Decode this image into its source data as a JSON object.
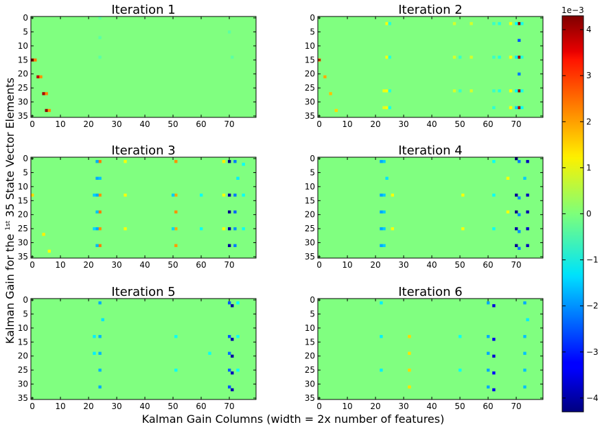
{
  "figure": {
    "xlabel": "Kalman Gain Columns (width = 2x number of features)",
    "ylabel_pre": "Kalman Gain for the ",
    "ylabel_sup": "1st",
    "ylabel_post": " 35 State Vector Elements"
  },
  "colorbar": {
    "colormap": "jet",
    "multiplier": "1e−3",
    "range": [
      -4.3,
      4.3
    ],
    "ticks": [
      4,
      3,
      2,
      1,
      0,
      -1,
      -2,
      -3,
      -4
    ],
    "tick_labels": [
      "4",
      "3",
      "2",
      "1",
      "0",
      "−1",
      "−2",
      "−3",
      "−4"
    ]
  },
  "chart_data": [
    {
      "type": "heatmap",
      "title": "Iteration 1",
      "xlim": [
        0,
        80
      ],
      "ylim": [
        36,
        0
      ],
      "xticks": [
        0,
        10,
        20,
        30,
        40,
        50,
        60,
        70
      ],
      "yticks": [
        0,
        5,
        10,
        15,
        20,
        25,
        30,
        35
      ],
      "baseline": 0,
      "cells": [
        [
          0,
          15,
          4.2
        ],
        [
          1,
          15,
          2.2
        ],
        [
          2,
          21,
          3.8
        ],
        [
          3,
          21,
          2.0
        ],
        [
          4,
          27,
          4.0
        ],
        [
          5,
          27,
          2.1
        ],
        [
          5,
          33,
          4.2
        ],
        [
          6,
          33,
          2.0
        ],
        [
          24,
          0,
          -0.25
        ],
        [
          24,
          7,
          -0.3
        ],
        [
          24,
          14,
          -0.3
        ],
        [
          70,
          5,
          -0.3
        ],
        [
          71,
          14,
          -0.3
        ]
      ]
    },
    {
      "type": "heatmap",
      "title": "Iteration 2",
      "xlim": [
        0,
        80
      ],
      "ylim": [
        36,
        0
      ],
      "xticks": [
        0,
        10,
        20,
        30,
        40,
        50,
        60,
        70
      ],
      "yticks": [
        0,
        5,
        10,
        15,
        20,
        25,
        30,
        35
      ],
      "baseline": 0,
      "cells": [
        [
          0,
          15,
          2.5
        ],
        [
          2,
          21,
          1.8
        ],
        [
          4,
          27,
          1.6
        ],
        [
          6,
          33,
          1.4
        ],
        [
          71,
          2,
          4.2
        ],
        [
          71,
          8,
          -2.5
        ],
        [
          71,
          14,
          4.0
        ],
        [
          71,
          20,
          -2.2
        ],
        [
          71,
          26,
          4.1
        ],
        [
          71,
          32,
          3.9
        ],
        [
          70,
          2,
          -1.0
        ],
        [
          70,
          14,
          -1.2
        ],
        [
          70,
          26,
          -1.1
        ],
        [
          70,
          32,
          -1.4
        ],
        [
          72,
          2,
          -0.9
        ],
        [
          72,
          14,
          -0.8
        ],
        [
          72,
          26,
          -0.9
        ],
        [
          72,
          32,
          -1.0
        ],
        [
          68,
          2,
          1.0
        ],
        [
          68,
          14,
          1.0
        ],
        [
          68,
          26,
          1.0
        ],
        [
          68,
          32,
          1.1
        ],
        [
          64,
          2,
          -0.8
        ],
        [
          64,
          14,
          -0.8
        ],
        [
          64,
          26,
          -0.8
        ],
        [
          62,
          2,
          -0.6
        ],
        [
          62,
          14,
          -0.6
        ],
        [
          62,
          26,
          -0.6
        ],
        [
          62,
          32,
          -0.7
        ],
        [
          24,
          2,
          1.0
        ],
        [
          24,
          14,
          1.0
        ],
        [
          24,
          26,
          1.0
        ],
        [
          24,
          32,
          1.0
        ],
        [
          25,
          2,
          -0.8
        ],
        [
          25,
          14,
          -0.8
        ],
        [
          25,
          26,
          -0.8
        ],
        [
          25,
          32,
          -0.9
        ],
        [
          23,
          26,
          0.9
        ],
        [
          23,
          32,
          0.8
        ],
        [
          48,
          2,
          0.7
        ],
        [
          48,
          14,
          0.7
        ],
        [
          48,
          26,
          0.7
        ],
        [
          50,
          14,
          -0.6
        ],
        [
          50,
          26,
          -0.6
        ],
        [
          54,
          2,
          0.7
        ],
        [
          54,
          14,
          0.7
        ],
        [
          54,
          26,
          0.7
        ]
      ]
    },
    {
      "type": "heatmap",
      "title": "Iteration 3",
      "xlim": [
        0,
        80
      ],
      "ylim": [
        36,
        0
      ],
      "xticks": [
        0,
        10,
        20,
        30,
        40,
        50,
        60,
        70
      ],
      "yticks": [
        0,
        5,
        10,
        15,
        20,
        25,
        30,
        35
      ],
      "baseline": 0,
      "cells": [
        [
          70,
          1,
          -4.2
        ],
        [
          70,
          13,
          -4.0
        ],
        [
          70,
          19,
          -4.2
        ],
        [
          70,
          25,
          -4.0
        ],
        [
          70,
          31,
          -4.1
        ],
        [
          72,
          1,
          -2.2
        ],
        [
          72,
          13,
          -2.2
        ],
        [
          72,
          19,
          -2.4
        ],
        [
          72,
          25,
          -2.0
        ],
        [
          72,
          31,
          -2.2
        ],
        [
          24,
          1,
          2.2
        ],
        [
          24,
          13,
          2.0
        ],
        [
          24,
          19,
          2.2
        ],
        [
          24,
          25,
          2.0
        ],
        [
          24,
          31,
          2.2
        ],
        [
          23,
          1,
          -1.8
        ],
        [
          23,
          13,
          -1.8
        ],
        [
          23,
          19,
          -1.6
        ],
        [
          23,
          25,
          -1.8
        ],
        [
          23,
          31,
          -1.7
        ],
        [
          23,
          7,
          -1.8
        ],
        [
          24,
          7,
          -1.6
        ],
        [
          22,
          13,
          -1.5
        ],
        [
          22,
          25,
          -1.4
        ],
        [
          51,
          1,
          2.0
        ],
        [
          51,
          13,
          1.8
        ],
        [
          51,
          19,
          2.0
        ],
        [
          51,
          25,
          1.8
        ],
        [
          51,
          31,
          1.9
        ],
        [
          50,
          13,
          -1.5
        ],
        [
          50,
          25,
          -1.4
        ],
        [
          68,
          1,
          1.2
        ],
        [
          68,
          13,
          1.0
        ],
        [
          68,
          25,
          1.0
        ],
        [
          73,
          7,
          -1.2
        ],
        [
          75,
          2,
          -1.0
        ],
        [
          75,
          13,
          -1.0
        ],
        [
          75,
          25,
          -1.0
        ],
        [
          33,
          1,
          1.0
        ],
        [
          33,
          13,
          1.0
        ],
        [
          33,
          25,
          1.0
        ],
        [
          60,
          13,
          -1.0
        ],
        [
          60,
          25,
          -1.0
        ],
        [
          0,
          13,
          1.4
        ],
        [
          4,
          27,
          1.2
        ],
        [
          6,
          33,
          1.0
        ]
      ]
    },
    {
      "type": "heatmap",
      "title": "Iteration 4",
      "xlim": [
        0,
        80
      ],
      "ylim": [
        36,
        0
      ],
      "xticks": [
        0,
        10,
        20,
        30,
        40,
        50,
        60,
        70
      ],
      "yticks": [
        0,
        5,
        10,
        15,
        20,
        25,
        30,
        35
      ],
      "baseline": 0,
      "cells": [
        [
          70,
          0,
          -4.1
        ],
        [
          70,
          13,
          -4.1
        ],
        [
          70,
          19,
          -4.2
        ],
        [
          70,
          25,
          -4.0
        ],
        [
          70,
          31,
          -4.1
        ],
        [
          71,
          1,
          -2.2
        ],
        [
          71,
          14,
          -2.0
        ],
        [
          71,
          20,
          -2.0
        ],
        [
          71,
          26,
          -2.0
        ],
        [
          71,
          32,
          -2.2
        ],
        [
          74,
          1,
          -3.8
        ],
        [
          74,
          13,
          -3.8
        ],
        [
          74,
          19,
          -3.9
        ],
        [
          74,
          25,
          -3.7
        ],
        [
          74,
          31,
          -3.8
        ],
        [
          73,
          7,
          -1.5
        ],
        [
          23,
          1,
          -1.5
        ],
        [
          23,
          13,
          -1.5
        ],
        [
          23,
          19,
          -1.5
        ],
        [
          23,
          25,
          -1.5
        ],
        [
          23,
          31,
          -1.5
        ],
        [
          22,
          1,
          -1.8
        ],
        [
          22,
          13,
          -1.8
        ],
        [
          22,
          19,
          -1.8
        ],
        [
          22,
          25,
          -1.8
        ],
        [
          22,
          31,
          -1.8
        ],
        [
          24,
          7,
          -1.3
        ],
        [
          26,
          13,
          1.0
        ],
        [
          26,
          25,
          1.0
        ],
        [
          51,
          13,
          1.0
        ],
        [
          51,
          25,
          1.0
        ],
        [
          62,
          1,
          -1.0
        ],
        [
          62,
          13,
          -1.0
        ],
        [
          62,
          25,
          -1.0
        ],
        [
          67,
          7,
          1.0
        ],
        [
          67,
          19,
          1.0
        ]
      ]
    },
    {
      "type": "heatmap",
      "title": "Iteration 5",
      "xlim": [
        0,
        80
      ],
      "ylim": [
        36,
        0
      ],
      "xticks": [
        0,
        10,
        20,
        30,
        40,
        50,
        60,
        70
      ],
      "yticks": [
        0,
        5,
        10,
        15,
        20,
        25,
        30,
        35
      ],
      "baseline": 0,
      "cells": [
        [
          71,
          2,
          -4.0
        ],
        [
          71,
          14,
          -3.9
        ],
        [
          71,
          20,
          -4.0
        ],
        [
          71,
          26,
          -3.8
        ],
        [
          71,
          32,
          -3.9
        ],
        [
          70,
          1,
          -2.5
        ],
        [
          70,
          13,
          -2.5
        ],
        [
          70,
          19,
          -2.3
        ],
        [
          70,
          25,
          -2.4
        ],
        [
          70,
          31,
          -2.5
        ],
        [
          24,
          1,
          -1.8
        ],
        [
          24,
          13,
          -1.7
        ],
        [
          24,
          19,
          -1.7
        ],
        [
          24,
          25,
          -1.7
        ],
        [
          24,
          31,
          -1.8
        ],
        [
          25,
          7,
          -1.3
        ],
        [
          22,
          13,
          -1.2
        ],
        [
          22,
          19,
          -1.2
        ],
        [
          51,
          13,
          -1.0
        ],
        [
          51,
          25,
          -1.0
        ],
        [
          63,
          19,
          -1.0
        ],
        [
          73,
          1,
          -1.0
        ],
        [
          73,
          13,
          -1.0
        ],
        [
          73,
          25,
          -1.0
        ]
      ]
    },
    {
      "type": "heatmap",
      "title": "Iteration 6",
      "xlim": [
        0,
        80
      ],
      "ylim": [
        36,
        0
      ],
      "xticks": [
        0,
        10,
        20,
        30,
        40,
        50,
        60,
        70
      ],
      "yticks": [
        0,
        5,
        10,
        15,
        20,
        25,
        30,
        35
      ],
      "baseline": 0,
      "cells": [
        [
          62,
          2,
          -3.5
        ],
        [
          62,
          14,
          -3.4
        ],
        [
          62,
          20,
          -3.6
        ],
        [
          62,
          26,
          -3.2
        ],
        [
          62,
          32,
          -3.4
        ],
        [
          60,
          1,
          -1.8
        ],
        [
          60,
          13,
          -1.8
        ],
        [
          60,
          19,
          -1.8
        ],
        [
          60,
          25,
          -1.8
        ],
        [
          60,
          31,
          -1.8
        ],
        [
          73,
          1,
          -1.8
        ],
        [
          73,
          13,
          -1.6
        ],
        [
          73,
          19,
          -1.6
        ],
        [
          73,
          25,
          -1.6
        ],
        [
          73,
          31,
          -1.6
        ],
        [
          74,
          7,
          -1.2
        ],
        [
          32,
          13,
          1.4
        ],
        [
          32,
          19,
          1.3
        ],
        [
          32,
          25,
          1.4
        ],
        [
          32,
          31,
          1.3
        ],
        [
          22,
          1,
          -1.2
        ],
        [
          22,
          13,
          -1.2
        ],
        [
          22,
          25,
          -1.2
        ],
        [
          50,
          13,
          -1.0
        ],
        [
          50,
          25,
          -1.0
        ]
      ]
    }
  ]
}
